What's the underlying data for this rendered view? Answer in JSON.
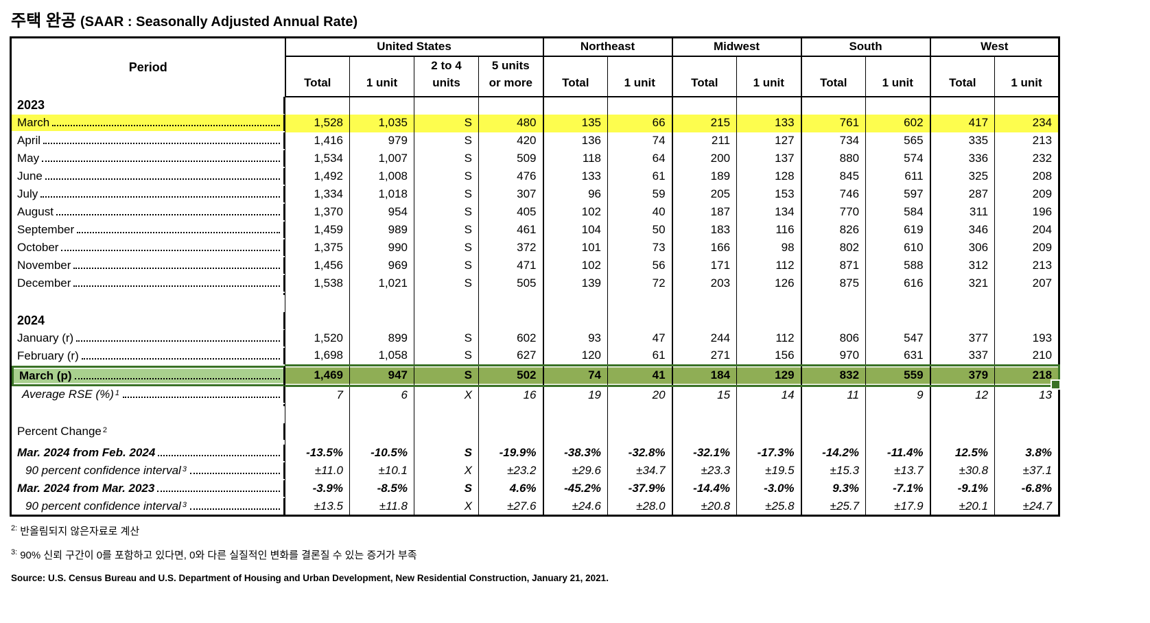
{
  "title": {
    "korean": "주택 완공",
    "english": "(SAAR : Seasonally Adjusted Annual Rate)"
  },
  "colors": {
    "highlight_yellow": "#FDFD4E",
    "selection_fill": "#8FAE55",
    "selection_label_fill": "#A9D08E",
    "selection_border": "#3A7226"
  },
  "table": {
    "period_header": "Period",
    "groups": [
      {
        "label": "United States",
        "cols": [
          "Total",
          "1 unit",
          "2 to 4\nunits",
          "5 units\nor more"
        ]
      },
      {
        "label": "Northeast",
        "cols": [
          "Total",
          "1 unit"
        ]
      },
      {
        "label": "Midwest",
        "cols": [
          "Total",
          "1 unit"
        ]
      },
      {
        "label": "South",
        "cols": [
          "Total",
          "1 unit"
        ]
      },
      {
        "label": "West",
        "cols": [
          "Total",
          "1 unit"
        ]
      }
    ],
    "rows": [
      {
        "type": "year",
        "label": "2023"
      },
      {
        "type": "data",
        "label": "March",
        "leaders": true,
        "highlight": "yellow",
        "values": [
          "1,528",
          "1,035",
          "S",
          "480",
          "135",
          "66",
          "215",
          "133",
          "761",
          "602",
          "417",
          "234"
        ]
      },
      {
        "type": "data",
        "label": "April",
        "leaders": true,
        "values": [
          "1,416",
          "979",
          "S",
          "420",
          "136",
          "74",
          "211",
          "127",
          "734",
          "565",
          "335",
          "213"
        ]
      },
      {
        "type": "data",
        "label": "May",
        "leaders": true,
        "values": [
          "1,534",
          "1,007",
          "S",
          "509",
          "118",
          "64",
          "200",
          "137",
          "880",
          "574",
          "336",
          "232"
        ]
      },
      {
        "type": "data",
        "label": "June",
        "leaders": true,
        "values": [
          "1,492",
          "1,008",
          "S",
          "476",
          "133",
          "61",
          "189",
          "128",
          "845",
          "611",
          "325",
          "208"
        ]
      },
      {
        "type": "data",
        "label": "July",
        "leaders": true,
        "values": [
          "1,334",
          "1,018",
          "S",
          "307",
          "96",
          "59",
          "205",
          "153",
          "746",
          "597",
          "287",
          "209"
        ]
      },
      {
        "type": "data",
        "label": "August",
        "leaders": true,
        "values": [
          "1,370",
          "954",
          "S",
          "405",
          "102",
          "40",
          "187",
          "134",
          "770",
          "584",
          "311",
          "196"
        ]
      },
      {
        "type": "data",
        "label": "September",
        "leaders": true,
        "values": [
          "1,459",
          "989",
          "S",
          "461",
          "104",
          "50",
          "183",
          "116",
          "826",
          "619",
          "346",
          "204"
        ]
      },
      {
        "type": "data",
        "label": "October",
        "leaders": true,
        "values": [
          "1,375",
          "990",
          "S",
          "372",
          "101",
          "73",
          "166",
          "98",
          "802",
          "610",
          "306",
          "209"
        ]
      },
      {
        "type": "data",
        "label": "November",
        "leaders": true,
        "values": [
          "1,456",
          "969",
          "S",
          "471",
          "102",
          "56",
          "171",
          "112",
          "871",
          "588",
          "312",
          "213"
        ]
      },
      {
        "type": "data",
        "label": "December",
        "leaders": true,
        "values": [
          "1,538",
          "1,021",
          "S",
          "505",
          "139",
          "72",
          "203",
          "126",
          "875",
          "616",
          "321",
          "207"
        ]
      },
      {
        "type": "blank"
      },
      {
        "type": "year",
        "label": "2024"
      },
      {
        "type": "data",
        "label": "January (r)",
        "leaders": true,
        "values": [
          "1,520",
          "899",
          "S",
          "602",
          "93",
          "47",
          "244",
          "112",
          "806",
          "547",
          "377",
          "193"
        ]
      },
      {
        "type": "data",
        "label": "February (r)",
        "leaders": true,
        "values": [
          "1,698",
          "1,058",
          "S",
          "627",
          "120",
          "61",
          "271",
          "156",
          "970",
          "631",
          "337",
          "210"
        ]
      },
      {
        "type": "data",
        "label": "March (p)",
        "leaders": true,
        "highlight": "green",
        "values": [
          "1,469",
          "947",
          "S",
          "502",
          "74",
          "41",
          "184",
          "129",
          "832",
          "559",
          "379",
          "218"
        ]
      },
      {
        "type": "data",
        "label": "Average RSE (%)",
        "sup": "1",
        "leaders": true,
        "style": "italic",
        "indent": 1,
        "values": [
          "7",
          "6",
          "X",
          "16",
          "19",
          "20",
          "15",
          "14",
          "11",
          "9",
          "12",
          "13"
        ]
      },
      {
        "type": "blank"
      },
      {
        "type": "label",
        "label": "Percent Change",
        "sup": "2"
      },
      {
        "type": "data",
        "label": "Mar. 2024 from Feb. 2024",
        "leaders": true,
        "style": "bolditalic",
        "values": [
          "-13.5%",
          "-10.5%",
          "S",
          "-19.9%",
          "-38.3%",
          "-32.8%",
          "-32.1%",
          "-17.3%",
          "-14.2%",
          "-11.4%",
          "12.5%",
          "3.8%"
        ]
      },
      {
        "type": "data",
        "label": "90 percent confidence interval",
        "sup": "3",
        "leaders": true,
        "style": "italic",
        "indent": 2,
        "values": [
          "±11.0",
          "±10.1",
          "X",
          "±23.2",
          "±29.6",
          "±34.7",
          "±23.3",
          "±19.5",
          "±15.3",
          "±13.7",
          "±30.8",
          "±37.1"
        ]
      },
      {
        "type": "data",
        "label": "Mar. 2024 from Mar. 2023",
        "leaders": true,
        "style": "bolditalic",
        "values": [
          "-3.9%",
          "-8.5%",
          "S",
          "4.6%",
          "-45.2%",
          "-37.9%",
          "-14.4%",
          "-3.0%",
          "9.3%",
          "-7.1%",
          "-9.1%",
          "-6.8%"
        ]
      },
      {
        "type": "data",
        "label": "90 percent confidence interval",
        "sup": "3",
        "leaders": true,
        "style": "italic",
        "indent": 2,
        "values": [
          "±13.5",
          "±11.8",
          "X",
          "±27.6",
          "±24.6",
          "±28.0",
          "±20.8",
          "±25.8",
          "±25.7",
          "±17.9",
          "±20.1",
          "±24.7"
        ]
      }
    ]
  },
  "footnotes": [
    {
      "sup": "2:",
      "text": "반올림되지 않은자료로 계산"
    },
    {
      "sup": "3:",
      "text": "90% 신뢰 구간이 0를 포함하고 있다면, 0와 다른 실질적인 변화를 결론질 수 있는 증거가 부족"
    }
  ],
  "source": "Source: U.S. Census Bureau and U.S. Department of Housing and Urban Development, New Residential Construction, January 21, 2021."
}
